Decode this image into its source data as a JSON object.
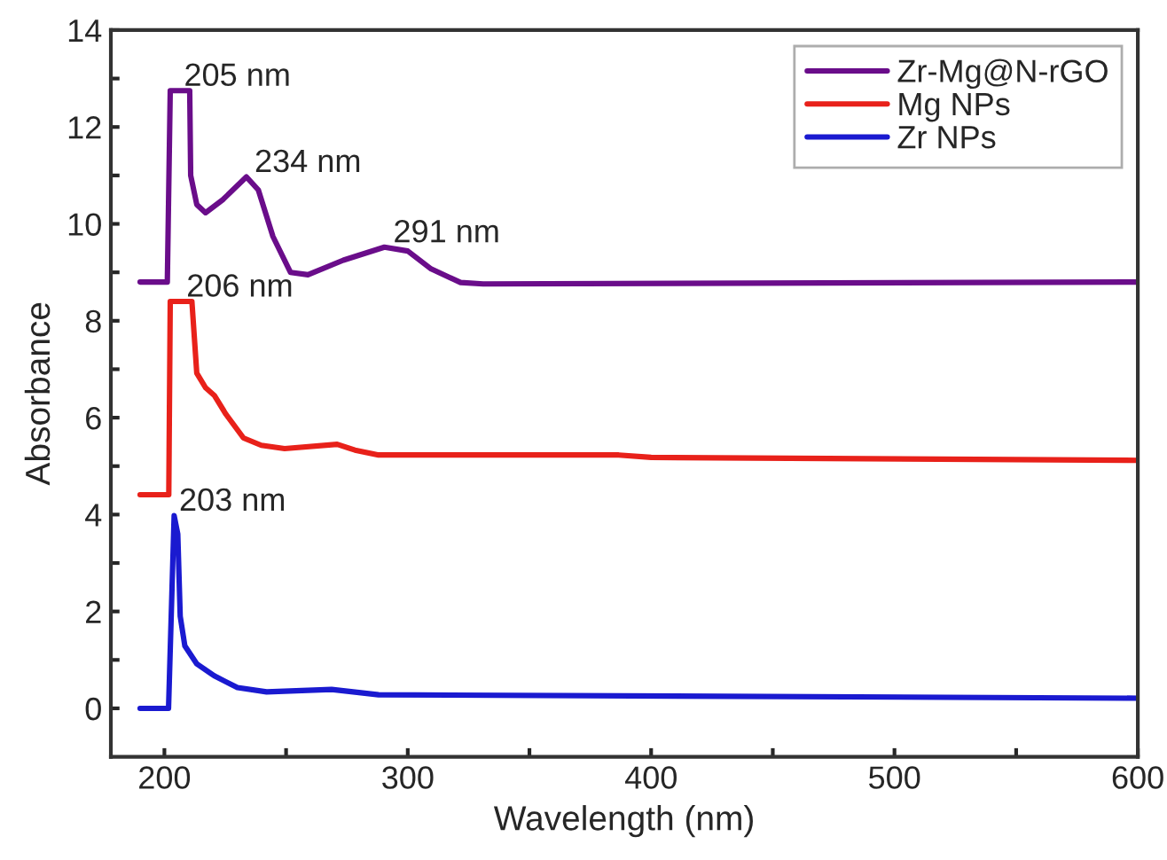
{
  "chart_data": {
    "type": "line",
    "xlabel": "Wavelength (nm)",
    "ylabel": "Absorbance",
    "xlim": [
      178,
      600
    ],
    "ylim": [
      -1,
      14
    ],
    "xticks": [
      200,
      {
        "value": 250,
        "label": null
      },
      300,
      {
        "value": 350,
        "label": null
      },
      400,
      {
        "value": 450,
        "label": null
      },
      500,
      {
        "value": 550,
        "label": null
      },
      600
    ],
    "yticks": [
      0,
      {
        "value": 1,
        "label": null
      },
      2,
      {
        "value": 3,
        "label": null
      },
      4,
      {
        "value": 5,
        "label": null
      },
      6,
      {
        "value": 7,
        "label": null
      },
      8,
      {
        "value": 9,
        "label": null
      },
      10,
      {
        "value": 11,
        "label": null
      },
      12,
      {
        "value": 13,
        "label": null
      },
      14
    ],
    "legend": "top right",
    "grid": false,
    "line_style": "solid",
    "series": [
      {
        "name": "Zr-Mg@N-rGO",
        "color": "#6a0d8a",
        "x": [
          190,
          201.2,
          202.4,
          210.4,
          210.8,
          213.3,
          216.9,
          224,
          233.7,
          238.6,
          244.6,
          251.8,
          259,
          273.5,
          290.4,
          300,
          309.6,
          321.7,
          331,
          600
        ],
        "values": [
          8.8,
          8.8,
          12.75,
          12.75,
          11.0,
          10.4,
          10.23,
          10.5,
          10.97,
          10.7,
          9.74,
          9.0,
          8.95,
          9.25,
          9.52,
          9.44,
          9.07,
          8.79,
          8.76,
          8.8
        ]
      },
      {
        "name": "Mg NPs",
        "color": "#e8211a",
        "x": [
          190,
          201.8,
          202.4,
          211.3,
          213.3,
          216.9,
          220.5,
          225.3,
          232.5,
          239.8,
          249.4,
          271,
          278.3,
          288,
          386.7,
          400,
          600
        ],
        "values": [
          4.41,
          4.41,
          8.4,
          8.4,
          6.92,
          6.62,
          6.46,
          6.07,
          5.58,
          5.43,
          5.36,
          5.45,
          5.33,
          5.23,
          5.23,
          5.18,
          5.12
        ]
      },
      {
        "name": "Zr NPs",
        "color": "#1a1ad0",
        "x": [
          190,
          201.7,
          204,
          205.5,
          206.5,
          208.4,
          213.3,
          220.5,
          230,
          242,
          268.7,
          288,
          600
        ],
        "values": [
          0,
          0,
          3.98,
          3.6,
          1.9,
          1.29,
          0.92,
          0.67,
          0.43,
          0.34,
          0.39,
          0.28,
          0.21
        ]
      }
    ],
    "annotations": [
      {
        "text": "205 nm",
        "x": 205,
        "y": 12.75
      },
      {
        "text": "234 nm",
        "x": 234,
        "y": 10.97
      },
      {
        "text": "291 nm",
        "x": 291,
        "y": 9.52
      },
      {
        "text": "206 nm",
        "x": 206,
        "y": 8.4
      },
      {
        "text": "203 nm",
        "x": 203,
        "y": 3.98
      }
    ]
  }
}
